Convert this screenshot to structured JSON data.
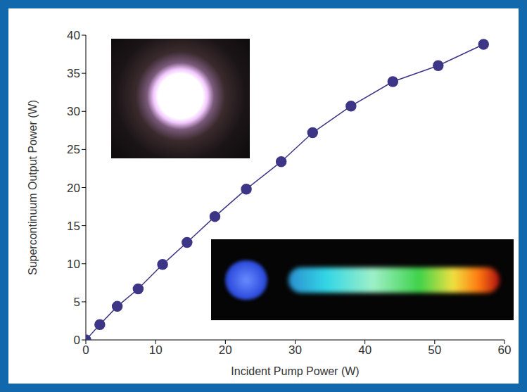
{
  "chart_data": {
    "type": "line",
    "x": [
      0,
      2,
      4.5,
      7.5,
      11,
      14.5,
      18.5,
      23,
      28,
      32.5,
      38,
      44,
      50.5,
      57
    ],
    "values": [
      0,
      2,
      4.4,
      6.7,
      9.9,
      12.8,
      16.2,
      19.8,
      23.4,
      27.2,
      30.7,
      33.9,
      36,
      38.8
    ],
    "xlabel": "Incident Pump Power (W)",
    "ylabel": "Supercontinuum Output Power (W)",
    "xlim": [
      0,
      60
    ],
    "ylim": [
      0,
      40
    ],
    "xticks": [
      0,
      10,
      20,
      30,
      40,
      50,
      60
    ],
    "yticks": [
      0,
      5,
      10,
      15,
      20,
      25,
      30,
      35,
      40
    ],
    "color": "#3d3585",
    "marker": "circle",
    "grid": false
  }
}
